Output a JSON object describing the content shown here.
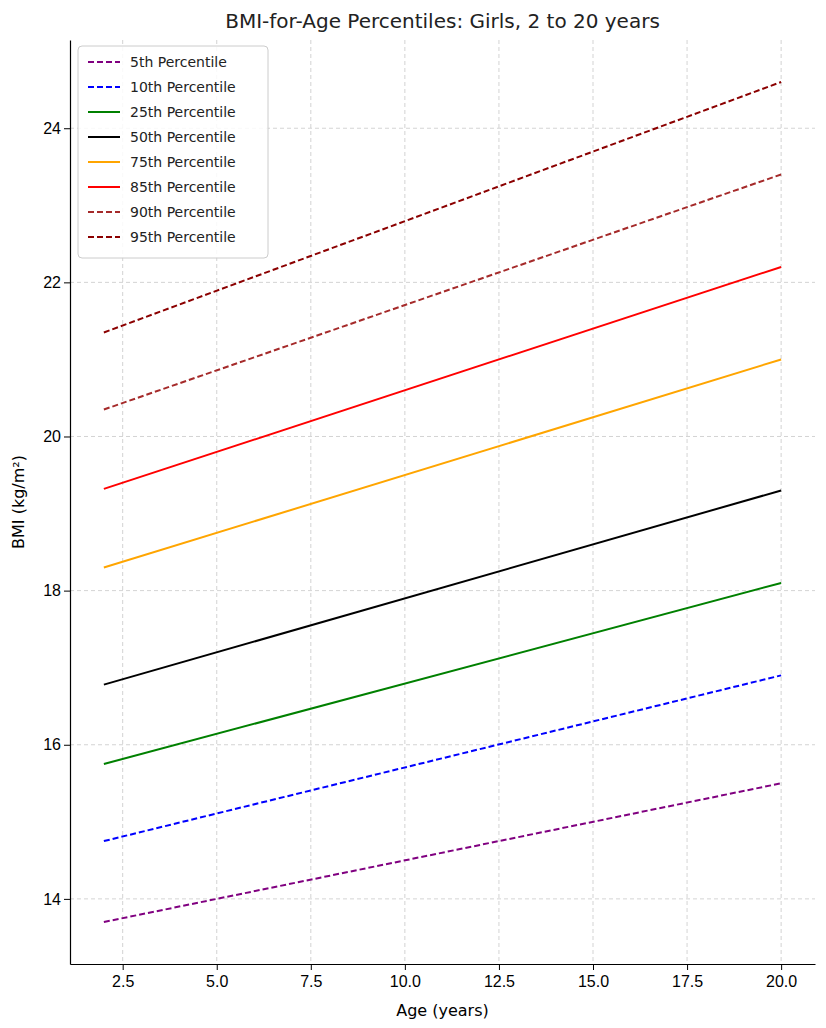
{
  "chart_data": {
    "type": "line",
    "title": "BMI-for-Age Percentiles: Girls, 2 to 20 years",
    "x_label": "Age (years)",
    "y_label": "BMI (kg/m²)",
    "x": [
      2,
      20
    ],
    "series": [
      {
        "name": "5th Percentile",
        "color": "#800080",
        "line_style": "dashed",
        "values": [
          13.7,
          15.5
        ]
      },
      {
        "name": "10th Percentile",
        "color": "#0000ff",
        "line_style": "dashed",
        "values": [
          14.75,
          16.9
        ]
      },
      {
        "name": "25th Percentile",
        "color": "#008000",
        "line_style": "solid",
        "values": [
          15.75,
          18.1
        ]
      },
      {
        "name": "50th Percentile",
        "color": "#000000",
        "line_style": "solid",
        "values": [
          16.78,
          19.3
        ]
      },
      {
        "name": "75th Percentile",
        "color": "#ffa500",
        "line_style": "solid",
        "values": [
          18.3,
          21.0
        ]
      },
      {
        "name": "85th Percentile",
        "color": "#ff0000",
        "line_style": "solid",
        "values": [
          19.32,
          22.2
        ]
      },
      {
        "name": "90th Percentile",
        "color": "#a52a2a",
        "line_style": "dashed",
        "values": [
          20.35,
          23.4
        ]
      },
      {
        "name": "95th Percentile",
        "color": "#8b0000",
        "line_style": "dashed",
        "values": [
          21.35,
          24.6
        ]
      }
    ],
    "xlim": [
      1.1,
      20.9
    ],
    "xticks": [
      2.5,
      {
        "value": 5,
        "label": "5.0"
      },
      7.5,
      {
        "value": 10,
        "label": "10.0"
      },
      12.5,
      {
        "value": 15,
        "label": "15.0"
      },
      17.5,
      {
        "value": 20,
        "label": "20.0"
      }
    ],
    "ylim": [
      13.155,
      25.145
    ],
    "yticks": [
      14,
      16,
      18,
      20,
      22,
      24
    ],
    "grid": true,
    "legend": "upper left"
  }
}
